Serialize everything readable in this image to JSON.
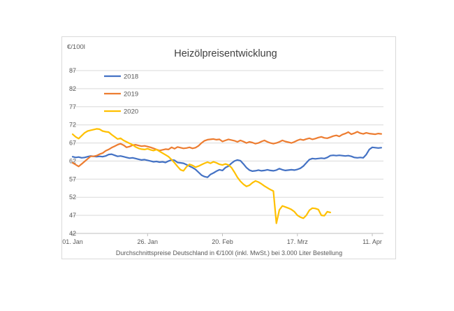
{
  "chart_data": {
    "type": "line",
    "title": "Heizölpreisentwicklung",
    "ylabel": "€/100l",
    "caption": "Durchschnittspreise Deutschland in €/100l (inkl. MwSt.) bei 3.000 Liter Bestellung",
    "ylim": [
      42,
      87
    ],
    "yticks": [
      87,
      82,
      77,
      72,
      67,
      62,
      57,
      52,
      47,
      42
    ],
    "xticks": [
      {
        "day": 0,
        "label": "01. Jan"
      },
      {
        "day": 25,
        "label": "26. Jan"
      },
      {
        "day": 50,
        "label": "20. Feb"
      },
      {
        "day": 75,
        "label": "17. Mrz"
      },
      {
        "day": 100,
        "label": "11. Apr"
      }
    ],
    "x_unit": "days since 01. Jan, daily samples",
    "grid": true,
    "legend_position": "top-left-inside",
    "colors": {
      "grid": "#d9d9d9",
      "axis": "#bfbfbf",
      "tick_text": "#595959",
      "title_text": "#404040"
    },
    "series": [
      {
        "name": "2018",
        "color": "#4472C4",
        "values": [
          63.2,
          63.0,
          63.1,
          62.9,
          63.0,
          63.2,
          63.4,
          63.3,
          63.2,
          63.3,
          63.2,
          63.4,
          63.8,
          63.9,
          63.6,
          63.3,
          63.4,
          63.2,
          63.0,
          62.8,
          62.9,
          62.7,
          62.5,
          62.3,
          62.4,
          62.2,
          62.0,
          61.8,
          61.9,
          61.7,
          61.8,
          61.6,
          62.0,
          62.3,
          62.2,
          61.6,
          61.5,
          61.4,
          61.0,
          60.6,
          60.2,
          59.7,
          58.9,
          58.1,
          57.7,
          57.5,
          58.3,
          58.7,
          59.2,
          59.6,
          59.4,
          60.2,
          60.6,
          61.4,
          62.0,
          62.3,
          62.1,
          61.2,
          60.2,
          59.5,
          59.2,
          59.3,
          59.5,
          59.3,
          59.4,
          59.6,
          59.4,
          59.3,
          59.5,
          59.9,
          59.6,
          59.4,
          59.5,
          59.6,
          59.5,
          59.7,
          60.0,
          60.6,
          61.5,
          62.4,
          62.7,
          62.6,
          62.7,
          62.8,
          62.7,
          63.0,
          63.5,
          63.6,
          63.5,
          63.6,
          63.5,
          63.4,
          63.5,
          63.3,
          63.0,
          62.9,
          63.0,
          62.9,
          63.8,
          65.2,
          65.8,
          65.7,
          65.6,
          65.7
        ]
      },
      {
        "name": "2019",
        "color": "#ED7D31",
        "values": [
          61.5,
          61.0,
          60.5,
          61.2,
          61.9,
          62.6,
          63.3,
          63.3,
          63.5,
          63.9,
          64.2,
          64.8,
          65.2,
          65.7,
          66.1,
          66.5,
          66.8,
          66.4,
          65.8,
          66.0,
          66.4,
          66.5,
          66.3,
          66.1,
          66.2,
          66.0,
          65.8,
          65.5,
          65.2,
          64.9,
          65.1,
          65.3,
          65.2,
          65.8,
          65.4,
          65.9,
          65.7,
          65.5,
          65.6,
          65.8,
          65.5,
          65.7,
          66.2,
          67.0,
          67.6,
          67.9,
          68.0,
          68.1,
          67.9,
          68.0,
          67.4,
          67.7,
          68.0,
          67.8,
          67.6,
          67.3,
          67.7,
          67.4,
          67.0,
          67.3,
          67.1,
          66.8,
          67.0,
          67.4,
          67.7,
          67.3,
          67.0,
          66.8,
          67.0,
          67.3,
          67.7,
          67.4,
          67.2,
          67.0,
          67.3,
          67.7,
          68.0,
          67.8,
          68.1,
          68.3,
          68.0,
          68.2,
          68.5,
          68.7,
          68.4,
          68.3,
          68.6,
          68.9,
          69.1,
          68.8,
          69.3,
          69.6,
          70.0,
          69.4,
          69.7,
          70.1,
          69.7,
          69.5,
          69.8,
          69.6,
          69.5,
          69.4,
          69.6,
          69.5
        ]
      },
      {
        "name": "2020",
        "color": "#FFC000",
        "values": [
          69.4,
          68.7,
          68.2,
          69.0,
          69.8,
          70.3,
          70.5,
          70.7,
          70.9,
          70.8,
          70.3,
          70.1,
          70.0,
          69.3,
          68.7,
          68.1,
          68.3,
          67.7,
          67.3,
          66.9,
          66.5,
          65.9,
          65.5,
          65.3,
          65.2,
          65.4,
          65.1,
          64.9,
          65.2,
          64.7,
          64.2,
          63.7,
          63.2,
          62.4,
          61.5,
          60.5,
          59.6,
          59.3,
          60.4,
          61.1,
          60.8,
          60.3,
          60.6,
          61.0,
          61.4,
          61.7,
          61.4,
          61.8,
          61.5,
          61.1,
          60.9,
          61.2,
          60.9,
          60.2,
          58.9,
          57.5,
          56.4,
          55.6,
          55.0,
          55.3,
          56.0,
          56.5,
          56.2,
          55.7,
          55.1,
          54.6,
          54.1,
          53.7,
          44.8,
          48.5,
          49.6,
          49.3,
          49.0,
          48.6,
          48.0,
          47.0,
          46.5,
          46.2,
          47.0,
          48.4,
          49.0,
          48.9,
          48.6,
          47.0,
          46.9,
          48.0,
          47.8
        ]
      }
    ]
  }
}
